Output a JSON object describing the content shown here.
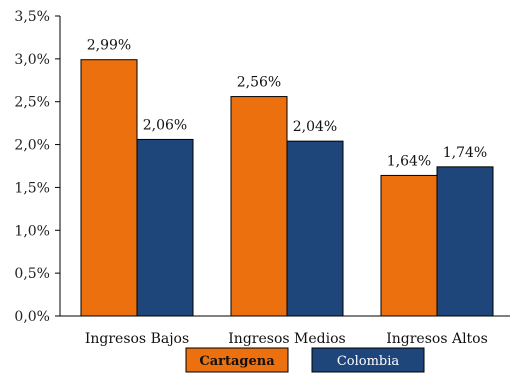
{
  "chart_data": {
    "type": "bar",
    "categories": [
      "Ingresos Bajos",
      "Ingresos Medios",
      "Ingresos Altos"
    ],
    "series": [
      {
        "name": "Cartagena",
        "values": [
          2.99,
          2.56,
          1.64
        ],
        "labels": [
          "2,99%",
          "2,56%",
          "1,64%"
        ],
        "color": "#ec700e"
      },
      {
        "name": "Colombia",
        "values": [
          2.06,
          2.04,
          1.74
        ],
        "labels": [
          "2,06%",
          "2,04%",
          "1,74%"
        ],
        "color": "#1f467b"
      }
    ],
    "yticks": [
      0,
      0.5,
      1.0,
      1.5,
      2.0,
      2.5,
      3.0,
      3.5
    ],
    "ytick_labels": [
      "0,0%",
      "0,5%",
      "1,0%",
      "1,5%",
      "2,0%",
      "2,5%",
      "3,0%",
      "3,5%"
    ],
    "ylim": [
      0,
      3.5
    ],
    "grid": false,
    "legend_position": "bottom"
  }
}
